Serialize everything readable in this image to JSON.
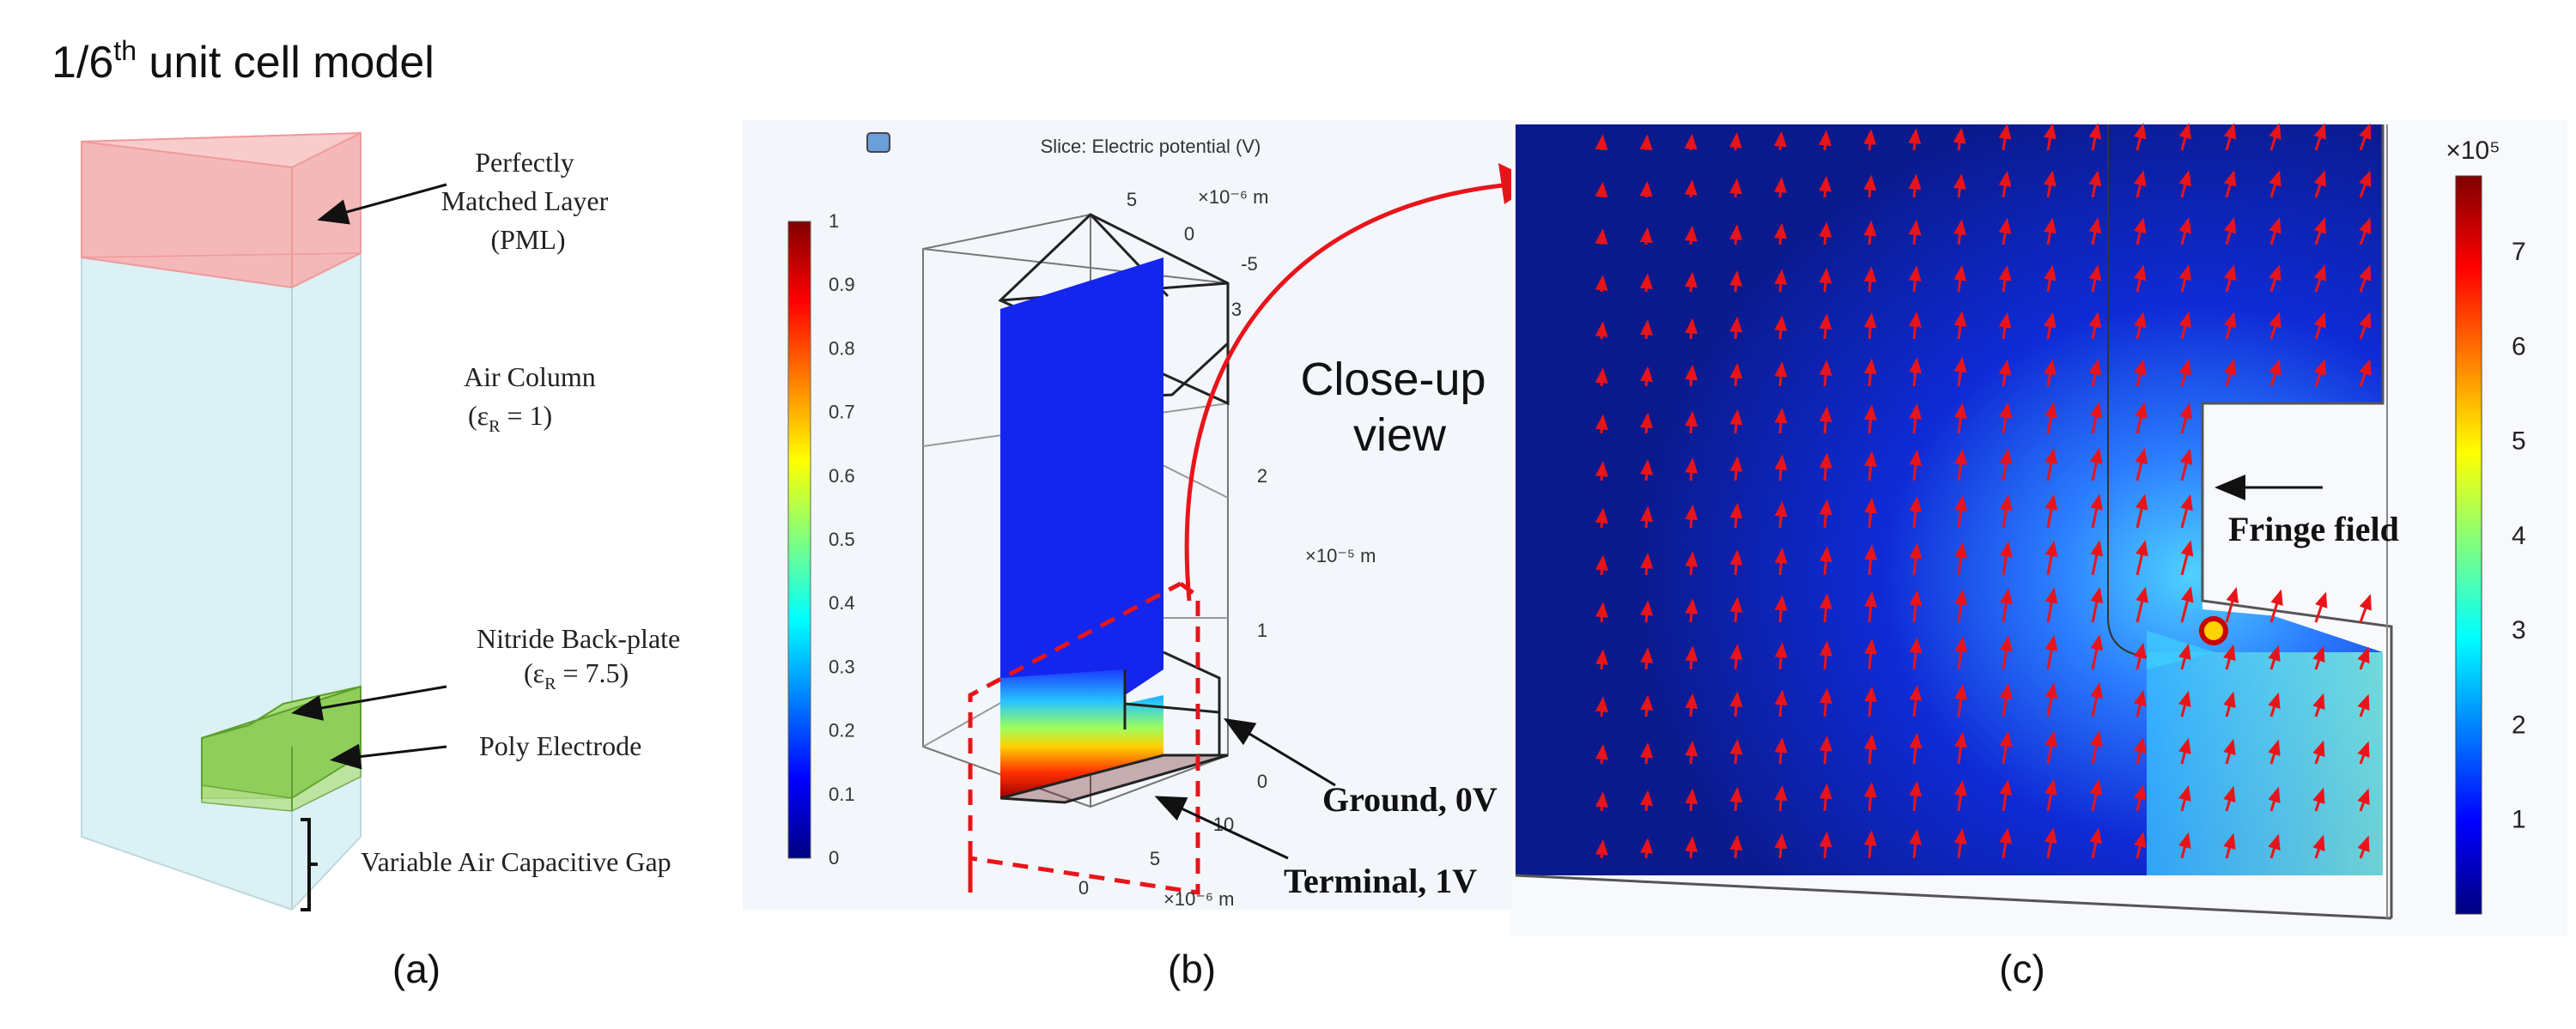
{
  "figure_title": {
    "main": "1/6",
    "sup": "th",
    "rest": " unit cell model"
  },
  "panel_a": {
    "pml_label_lines": [
      "Perfectly",
      "Matched Layer",
      "(PML)"
    ],
    "air_label_lines": [
      "Air Column",
      "(ε",
      "R",
      " = 1)"
    ],
    "nitride_label_lines": [
      "Nitride Back-plate",
      "(ε",
      "R",
      " = 7.5)"
    ],
    "poly_label": "Poly Electrode",
    "gap_label": "Variable Air Capacitive Gap",
    "caption": "(a)"
  },
  "panel_b": {
    "plot_title": "Slice: Electric potential (V)",
    "colorbar_ticks": [
      "1",
      "0.9",
      "0.8",
      "0.7",
      "0.6",
      "0.5",
      "0.4",
      "0.3",
      "0.2",
      "0.1",
      "0"
    ],
    "top_axis_ticks": [
      "5",
      "0",
      "-5"
    ],
    "top_axis_unit": "×10⁻⁶ m",
    "z_axis_ticks": [
      "3",
      "2",
      "1",
      "0"
    ],
    "z_axis_unit": "×10⁻⁵ m",
    "bottom_axis_ticks": [
      "10",
      "5",
      "0"
    ],
    "bottom_axis_unit": "×10⁻⁶ m",
    "ground_label": "Ground, 0V",
    "terminal_label": "Terminal, 1V",
    "closeup_lines": [
      "Close-up",
      "view"
    ],
    "caption": "(b)"
  },
  "panel_c": {
    "fringe_label": "Fringe field",
    "colorbar_exp": "×10⁵",
    "colorbar_ticks": [
      "7",
      "6",
      "5",
      "4",
      "3",
      "2",
      "1"
    ],
    "caption": "(c)"
  },
  "colors": {
    "pml": "#f2a8a8",
    "air": "#d8f0f4",
    "electrode": "#7cc443",
    "arrow_red": "#e8141a",
    "field_blue": "#0a1a8c"
  }
}
